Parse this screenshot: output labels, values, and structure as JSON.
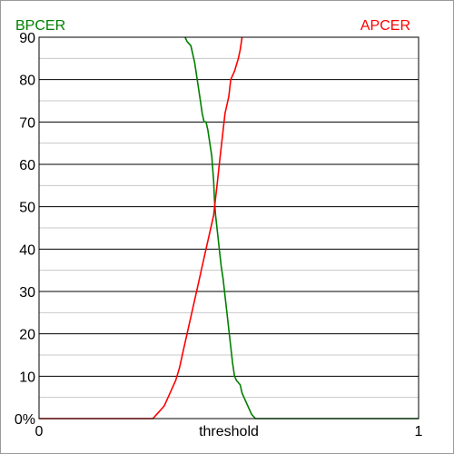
{
  "chart_data": {
    "type": "line",
    "title": "",
    "xlabel": "threshold",
    "ylabel": "",
    "xlim": [
      0,
      1
    ],
    "ylim": [
      0,
      90
    ],
    "x_ticks": [
      {
        "value": 0,
        "label": "0"
      },
      {
        "value": 1,
        "label": "1"
      }
    ],
    "y_ticks": [
      {
        "value": 0,
        "label": "0%"
      },
      {
        "value": 10,
        "label": "10"
      },
      {
        "value": 20,
        "label": "20"
      },
      {
        "value": 30,
        "label": "30"
      },
      {
        "value": 40,
        "label": "40"
      },
      {
        "value": 50,
        "label": "50"
      },
      {
        "value": 60,
        "label": "60"
      },
      {
        "value": 70,
        "label": "70"
      },
      {
        "value": 80,
        "label": "80"
      },
      {
        "value": 90,
        "label": "90"
      }
    ],
    "grid": {
      "major_every": 10,
      "minor_every": 5
    },
    "legend_placement": "top-left and top-right corners",
    "series": [
      {
        "name": "BPCER",
        "color": "#008000",
        "legend_position": "top-left",
        "points": [
          [
            0.385,
            90
          ],
          [
            0.39,
            89
          ],
          [
            0.4,
            88
          ],
          [
            0.405,
            86
          ],
          [
            0.41,
            84
          ],
          [
            0.415,
            81
          ],
          [
            0.42,
            78
          ],
          [
            0.425,
            75
          ],
          [
            0.43,
            72
          ],
          [
            0.435,
            70
          ],
          [
            0.44,
            70
          ],
          [
            0.445,
            68
          ],
          [
            0.45,
            65
          ],
          [
            0.455,
            62
          ],
          [
            0.46,
            56
          ],
          [
            0.462,
            52
          ],
          [
            0.465,
            48
          ],
          [
            0.47,
            44
          ],
          [
            0.475,
            40
          ],
          [
            0.48,
            36
          ],
          [
            0.485,
            33
          ],
          [
            0.49,
            29
          ],
          [
            0.495,
            25
          ],
          [
            0.5,
            21
          ],
          [
            0.505,
            17
          ],
          [
            0.51,
            13
          ],
          [
            0.515,
            10
          ],
          [
            0.52,
            9
          ],
          [
            0.53,
            8
          ],
          [
            0.535,
            6
          ],
          [
            0.54,
            5
          ],
          [
            0.55,
            3
          ],
          [
            0.56,
            1
          ],
          [
            0.57,
            0
          ],
          [
            1.0,
            0
          ]
        ]
      },
      {
        "name": "APCER",
        "color": "#ff0000",
        "legend_position": "top-right",
        "points": [
          [
            0.0,
            0
          ],
          [
            0.3,
            0
          ],
          [
            0.31,
            1
          ],
          [
            0.32,
            2
          ],
          [
            0.33,
            3
          ],
          [
            0.34,
            5
          ],
          [
            0.35,
            7
          ],
          [
            0.36,
            9
          ],
          [
            0.37,
            12
          ],
          [
            0.38,
            16
          ],
          [
            0.39,
            20
          ],
          [
            0.4,
            24
          ],
          [
            0.41,
            28
          ],
          [
            0.42,
            32
          ],
          [
            0.43,
            36
          ],
          [
            0.44,
            40
          ],
          [
            0.45,
            44
          ],
          [
            0.46,
            48
          ],
          [
            0.465,
            52
          ],
          [
            0.47,
            56
          ],
          [
            0.475,
            60
          ],
          [
            0.48,
            64
          ],
          [
            0.485,
            68
          ],
          [
            0.49,
            72
          ],
          [
            0.5,
            76
          ],
          [
            0.505,
            80
          ],
          [
            0.515,
            82
          ],
          [
            0.525,
            85
          ],
          [
            0.53,
            87
          ],
          [
            0.535,
            90
          ]
        ]
      }
    ]
  }
}
